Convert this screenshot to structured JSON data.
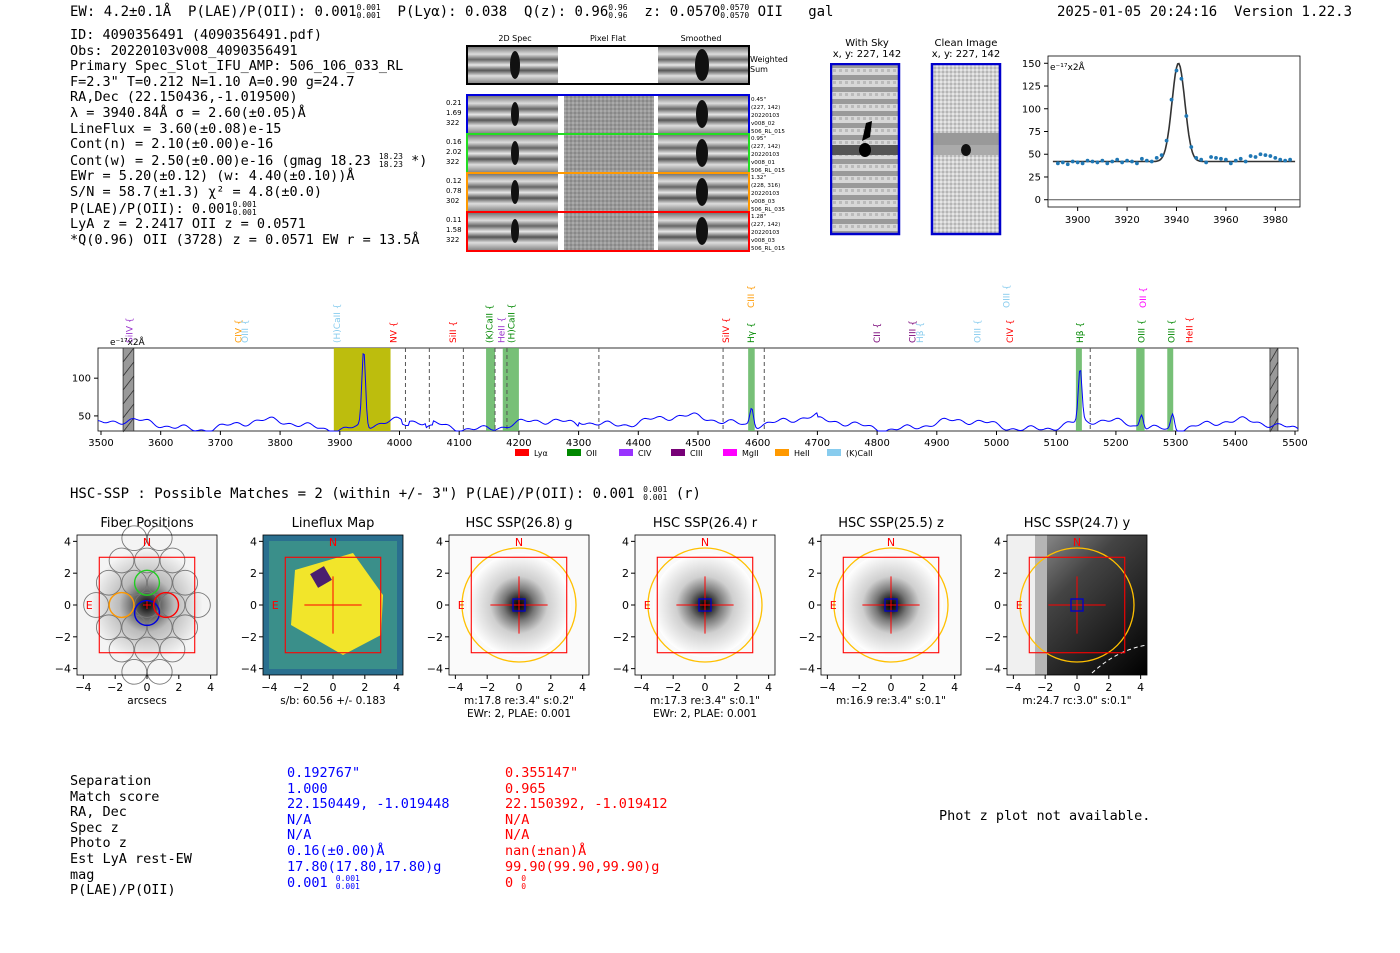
{
  "header": {
    "ew": "EW: 4.2±0.1Å",
    "plae_prefix": "P(LAE)/P(OII): 0.001",
    "plae_sup": "0.001",
    "plae_sub": "0.001",
    "plya": "P(Lyα): 0.038",
    "qz_prefix": "Q(z): 0.96",
    "qz_sup": "0.96",
    "qz_sub": "0.96",
    "z_prefix": "z: 0.0570",
    "z_sup": "0.0570",
    "z_sub": "0.0570",
    "z_suffix": "OII",
    "gal": "gal",
    "timestamp": "2025-01-05 20:24:16",
    "version": "Version 1.22.3"
  },
  "info": {
    "l1": "ID: 4090356491 (4090356491.pdf)",
    "l2": "Obs: 20220103v008_4090356491",
    "l3": "Primary Spec_Slot_IFU_AMP: 506_106_033_RL",
    "l4": "F=2.3\"  T=0.212  N=1.10  A=0.90  g=24.7",
    "l5": "RA,Dec (22.150436,-1.019500)",
    "l6": "λ = 3940.84Å  σ = 2.60(±0.05)Å",
    "l7": "LineFlux = 3.60(±0.08)e-15",
    "l8": "Cont(n) = 2.10(±0.00)e-16",
    "l9_prefix": "Cont(w) = 2.50(±0.00)e-16 (gmag 18.23",
    "l9_sup": "18.23",
    "l9_sub": "18.23",
    "l9_suffix": "*)",
    "l10": "EWr = 5.20(±0.12) (w: 4.40(±0.10))Å",
    "l11": "S/N = 58.7(±1.3)  χ² = 4.8(±0.0)",
    "l12_prefix": "P(LAE)/P(OII): 0.001",
    "l12_sup": "0.001",
    "l12_sub": "0.001",
    "l13": "LyA z = 2.2417  OII z = 0.0571",
    "l14": "*Q(0.96) OII (3728) z = 0.0571  EW r = 13.5Å"
  },
  "cutouts": {
    "col_2d": "2D Spec",
    "col_flat": "Pixel Flat",
    "col_smooth": "Smoothed",
    "weighted": "Weighted",
    "sum": "Sum",
    "rows": [
      {
        "l1": "0.21",
        "l2": "1.69",
        "l3": "322",
        "r1": "0.45\"",
        "r2": "(227, 142)",
        "r3": "20220103",
        "r4": "v008_02",
        "r5": "506_RL_015",
        "color": "#0000dd"
      },
      {
        "l1": "0.16",
        "l2": "2.02",
        "l3": "322",
        "r1": "0.95\"",
        "r2": "(227, 142)",
        "r3": "20220103",
        "r4": "v008_01",
        "r5": "506_RL_015",
        "color": "#22dd22"
      },
      {
        "l1": "0.12",
        "l2": "0.78",
        "l3": "302",
        "r1": "1.32\"",
        "r2": "(228, 316)",
        "r3": "20220103",
        "r4": "v008_03",
        "r5": "506_RL_035",
        "color": "#ff9900"
      },
      {
        "l1": "0.11",
        "l2": "1.58",
        "l3": "322",
        "r1": "1.28\"",
        "r2": "(227, 142)",
        "r3": "20220103",
        "r4": "v008_03",
        "r5": "506_RL_015",
        "color": "#ff0000"
      }
    ]
  },
  "sky": {
    "with_title": "With Sky",
    "with_xy": "x, y: 227, 142",
    "clean_title": "Clean Image",
    "clean_xy": "x, y: 227, 142"
  },
  "zoom_plot": {
    "unit": "e⁻¹⁷x2Å",
    "yticks": [
      "0",
      "25",
      "50",
      "75",
      "100",
      "125",
      "150"
    ],
    "xticks": [
      "3900",
      "3920",
      "3940",
      "3960",
      "3980"
    ]
  },
  "spectrum": {
    "unit": "e⁻¹⁷x2Å",
    "yticks": [
      "50",
      "100"
    ],
    "xticks": [
      "3500",
      "3600",
      "3700",
      "3800",
      "3900",
      "4000",
      "4100",
      "4200",
      "4300",
      "4400",
      "4500",
      "4600",
      "4700",
      "4800",
      "4900",
      "5000",
      "5100",
      "5200",
      "5300",
      "5400",
      "5500"
    ],
    "lines": [
      {
        "label": "SiIV",
        "color": "#9933cc",
        "w": 3548
      },
      {
        "label": "CIV",
        "color": "#ff9900",
        "w": 3730
      },
      {
        "label": "OIII",
        "color": "#88ccee",
        "w": 3741
      },
      {
        "label": "(H)CaII",
        "color": "#88ccee",
        "w": 3895
      },
      {
        "label": "NV",
        "color": "#ff0000",
        "w": 3990
      },
      {
        "label": "SiII",
        "color": "#ff0000",
        "w": 4090
      },
      {
        "label": "(K)CaII",
        "color": "#008800",
        "w": 4151
      },
      {
        "label": "HeII",
        "color": "#9933cc",
        "w": 4171
      },
      {
        "label": "(H)CaII",
        "color": "#008800",
        "w": 4188
      },
      {
        "label": "SiIV",
        "color": "#ff0000",
        "w": 4547
      },
      {
        "label": "Hγ",
        "color": "#008800",
        "w": 4589
      },
      {
        "label": "CIII",
        "color": "#ff9900",
        "w": 4589
      },
      {
        "label": "CII",
        "color": "#770077",
        "w": 4800
      },
      {
        "label": "CIII",
        "color": "#770077",
        "w": 4859
      },
      {
        "label": "Hβ",
        "color": "#88ccee",
        "w": 4872
      },
      {
        "label": "OIII",
        "color": "#88ccee",
        "w": 4968
      },
      {
        "label": "CIV",
        "color": "#ff0000",
        "w": 5023
      },
      {
        "label": "OIII",
        "color": "#88ccee",
        "w": 5017
      },
      {
        "label": "Hβ",
        "color": "#008800",
        "w": 5140
      },
      {
        "label": "OIII",
        "color": "#008800",
        "w": 5243
      },
      {
        "label": "OII",
        "color": "#ff00ff",
        "w": 5245
      },
      {
        "label": "OIII",
        "color": "#008800",
        "w": 5293
      },
      {
        "label": "HeII",
        "color": "#ff0000",
        "w": 5323
      }
    ],
    "legend": [
      {
        "label": "Lyα",
        "color": "#ff0000"
      },
      {
        "label": "OII",
        "color": "#008800"
      },
      {
        "label": "CIV",
        "color": "#9933ff"
      },
      {
        "label": "CIII",
        "color": "#770077"
      },
      {
        "label": "MgII",
        "color": "#ff00ff"
      },
      {
        "label": "HeII",
        "color": "#ff9900"
      },
      {
        "label": "(K)CaII",
        "color": "#88ccee"
      }
    ]
  },
  "hsc": {
    "header_prefix": "HSC-SSP : Possible Matches = 2 (within +/- 3\")  P(LAE)/P(OII): 0.001",
    "header_sup": "0.001",
    "header_sub": "0.001",
    "header_suffix": "(r)",
    "panels": [
      {
        "title": "Fiber Positions",
        "cap1": "arcsecs",
        "cap2": ""
      },
      {
        "title": "Lineflux Map",
        "cap1": "s/b: 60.56 +/- 0.183",
        "cap2": ""
      },
      {
        "title": "HSC SSP(26.8) g",
        "cap1": "m:17.8  re:3.4\"  s:0.2\"",
        "cap2": "EWr: 2, PLAE: 0.001"
      },
      {
        "title": "HSC SSP(26.4) r",
        "cap1": "m:17.3  re:3.4\"  s:0.1\"",
        "cap2": "EWr: 2, PLAE: 0.001"
      },
      {
        "title": "HSC SSP(25.5) z",
        "cap1": "m:16.9  re:3.4\"  s:0.1\"",
        "cap2": ""
      },
      {
        "title": "HSC SSP(24.7) y",
        "cap1": "m:24.7  rc:3.0\"  s:0.1\"",
        "cap2": ""
      }
    ],
    "yticks": [
      "4",
      "2",
      "0",
      "−2",
      "−4"
    ],
    "xticks": [
      "−4",
      "−2",
      "0",
      "2",
      "4"
    ],
    "n_label": "N",
    "e_label": "E"
  },
  "matches": {
    "labels": [
      "Separation",
      "Match score",
      "RA, Dec",
      "Spec z",
      "Photo z",
      "Est LyA rest-EW",
      "mag",
      "P(LAE)/P(OII)"
    ],
    "m1": [
      "0.192767\"",
      "1.000",
      "22.150449, -1.019448",
      "N/A",
      "N/A",
      "0.16(±0.00)Å",
      "17.80(17.80,17.80)g",
      "0.001"
    ],
    "m1_sup": "0.001",
    "m1_sub": "0.001",
    "m2": [
      "0.355147\"",
      "0.965",
      "22.150392, -1.019412",
      "N/A",
      "N/A",
      "nan(±nan)Å",
      "99.90(99.90,99.90)g",
      "0"
    ],
    "m2_sup": "0",
    "m2_sub": "0",
    "photz_note": "Phot z plot not available."
  },
  "chart_data": [
    {
      "type": "scatter",
      "title": "",
      "xlabel": "",
      "ylabel": "e⁻¹⁷x2Å",
      "xlim": [
        3888,
        3990
      ],
      "ylim": [
        -8,
        158
      ],
      "fit_peak": 150,
      "fit_center": 3940.8,
      "fit_sigma": 2.6,
      "fit_cont": 42,
      "x": [
        3892,
        3894,
        3896,
        3898,
        3900,
        3902,
        3904,
        3906,
        3908,
        3910,
        3912,
        3914,
        3916,
        3918,
        3920,
        3922,
        3924,
        3926,
        3928,
        3930,
        3932,
        3934,
        3936,
        3938,
        3940,
        3942,
        3944,
        3946,
        3948,
        3950,
        3952,
        3954,
        3956,
        3958,
        3960,
        3962,
        3964,
        3966,
        3968,
        3970,
        3972,
        3974,
        3976,
        3978,
        3980,
        3982,
        3984,
        3986
      ],
      "y": [
        40,
        41,
        39,
        42,
        41,
        40,
        43,
        42,
        41,
        43,
        40,
        42,
        44,
        41,
        43,
        42,
        40,
        45,
        43,
        42,
        46,
        49,
        65,
        110,
        142,
        133,
        92,
        58,
        46,
        44,
        41,
        47,
        46,
        45,
        44,
        40,
        43,
        45,
        42,
        48,
        47,
        50,
        49,
        48,
        46,
        44,
        43,
        44
      ]
    },
    {
      "type": "line",
      "title": "",
      "xlabel": "",
      "ylabel": "e⁻¹⁷x2Å",
      "xlim": [
        3495,
        5505
      ],
      "ylim": [
        30,
        140
      ],
      "series": [
        {
          "name": "spectrum",
          "color": "#0000ff"
        }
      ],
      "highlight_bands": [
        [
          3890,
          3985
        ],
        [
          4145,
          4160
        ],
        [
          4173,
          4200
        ],
        [
          4584,
          4595
        ],
        [
          5133,
          5143
        ],
        [
          5234,
          5248
        ],
        [
          5286,
          5296
        ]
      ],
      "hatched": [
        [
          3537,
          3555
        ],
        [
          5458,
          5468
        ]
      ],
      "dashed_x": [
        4010,
        4050,
        4107,
        4160,
        4180,
        4334,
        4542,
        4611,
        5157
      ],
      "peaks": [
        {
          "w": 3940,
          "h": 140
        },
        {
          "w": 4590,
          "h": 64
        },
        {
          "w": 5140,
          "h": 109
        },
        {
          "w": 5243,
          "h": 58
        },
        {
          "w": 5295,
          "h": 60
        }
      ]
    }
  ]
}
